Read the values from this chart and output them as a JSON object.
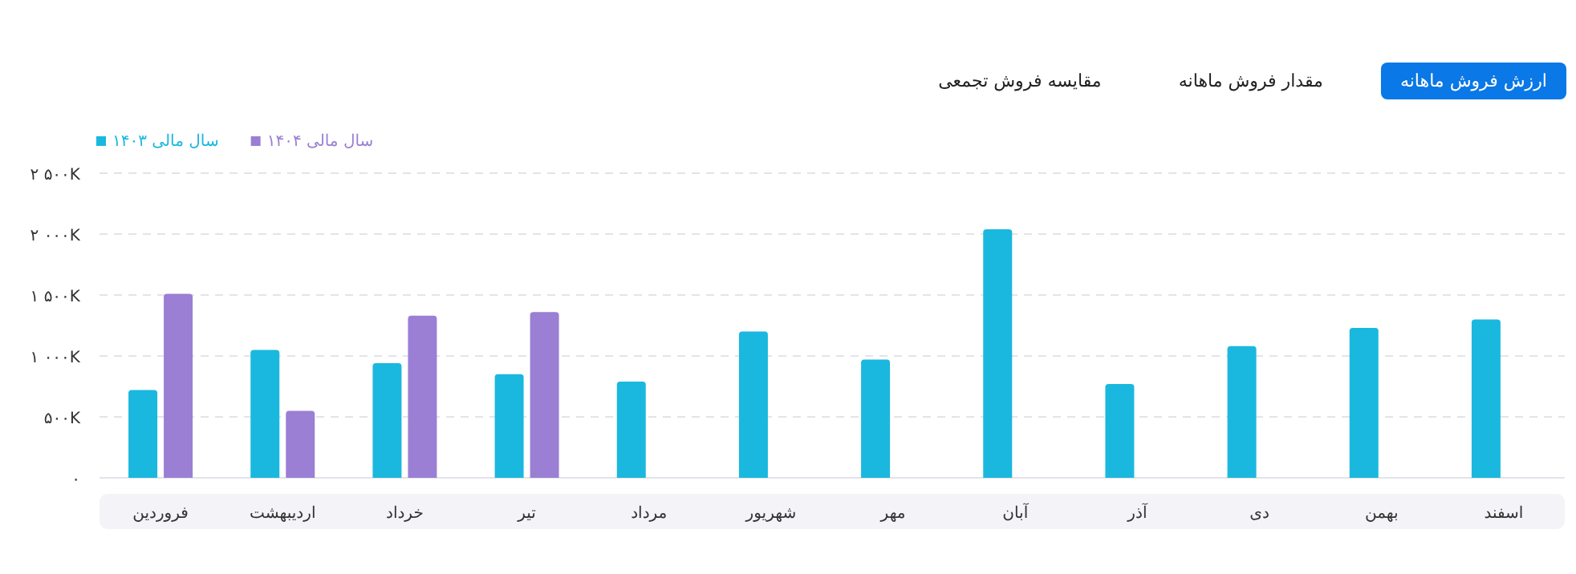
{
  "chart_data": {
    "type": "bar",
    "categories": [
      "فروردین",
      "اردیبهشت",
      "خرداد",
      "تیر",
      "مرداد",
      "شهریور",
      "مهر",
      "آبان",
      "آذر",
      "دی",
      "بهمن",
      "اسفند"
    ],
    "series": [
      {
        "name": "سال مالی ۱۴۰۳",
        "color": "#1ab8de",
        "values": [
          720,
          1050,
          940,
          850,
          790,
          1200,
          970,
          2040,
          770,
          1080,
          1230,
          1300
        ]
      },
      {
        "name": "سال مالی ۱۴۰۴",
        "color": "#9b7fd4",
        "values": [
          1510,
          550,
          1330,
          1360,
          null,
          null,
          null,
          null,
          null,
          null,
          null,
          null
        ]
      }
    ],
    "ylim": [
      0,
      2500
    ],
    "yticks": [
      {
        "value": 0,
        "label": "۰"
      },
      {
        "value": 500,
        "label": "۵۰۰K"
      },
      {
        "value": 1000,
        "label": "۱ ۰۰۰K"
      },
      {
        "value": 1500,
        "label": "۱ ۵۰۰K"
      },
      {
        "value": 2000,
        "label": "۲ ۰۰۰K"
      },
      {
        "value": 2500,
        "label": "۲ ۵۰۰K"
      }
    ],
    "grid": "y",
    "legend": "top left",
    "annotations": [
      "ارزش فروش ماهانه",
      "مقدار فروش ماهانه",
      "مقایسه فروش تجمعی"
    ]
  }
}
